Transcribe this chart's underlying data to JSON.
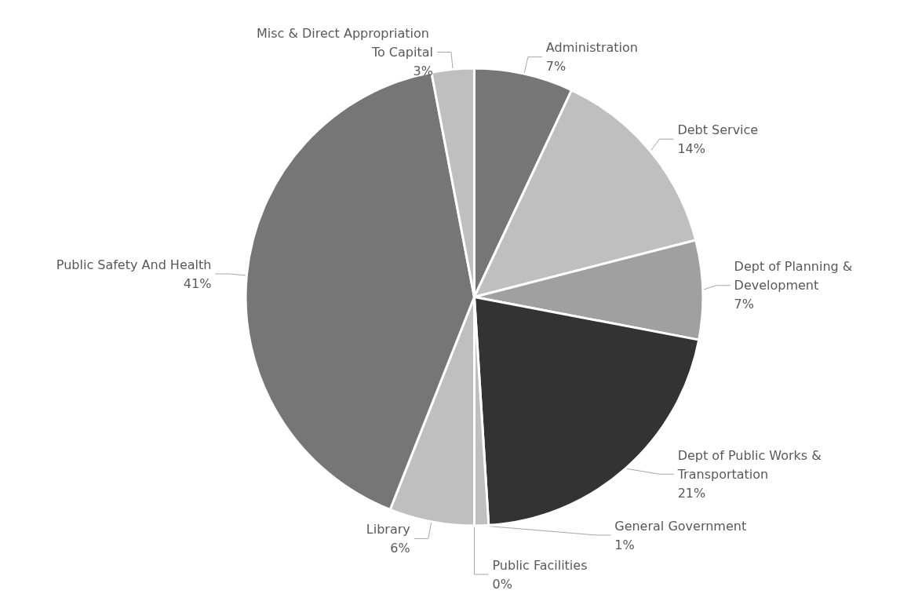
{
  "chart_data": {
    "type": "pie",
    "categories": [
      "Administration",
      "Debt Service",
      "Dept of Planning & Development",
      "Dept of Public Works & Transportation",
      "General Government",
      "Public Facilities",
      "Library",
      "Public Safety And Health",
      "Misc & Direct Appropriation To Capital"
    ],
    "values": [
      7,
      14,
      7,
      21,
      1,
      0,
      6,
      41,
      3
    ],
    "colors": [
      "#767676",
      "#bfbfbf",
      "#a0a0a0",
      "#333333",
      "#bfbfbf",
      "#a0a0a0",
      "#bfbfbf",
      "#767676",
      "#bfbfbf"
    ],
    "value_labels": [
      "7%",
      "14%",
      "7%",
      "21%",
      "1%",
      "0%",
      "6%",
      "41%",
      "3%"
    ],
    "legend": false
  }
}
